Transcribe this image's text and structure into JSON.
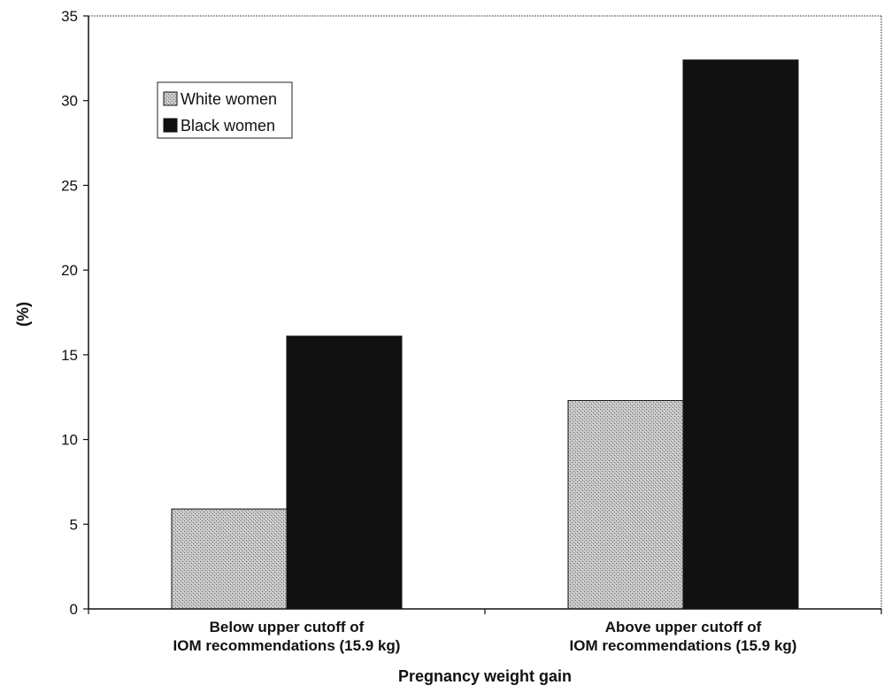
{
  "chart_data": {
    "type": "bar",
    "title": "",
    "xlabel": "Pregnancy weight gain",
    "ylabel": "(%)",
    "ylim": [
      0,
      35
    ],
    "yticks": [
      0,
      5,
      10,
      15,
      20,
      25,
      30,
      35
    ],
    "grid": false,
    "legend_position": "top-left",
    "categories": [
      [
        "Below upper cutoff of",
        "IOM recommendations (15.9 kg)"
      ],
      [
        "Above upper cutoff of",
        "IOM recommendations (15.9 kg)"
      ]
    ],
    "series": [
      {
        "name": "White women",
        "values": [
          5.9,
          12.3
        ],
        "color": "#b8b8b8",
        "pattern": "stipple"
      },
      {
        "name": "Black women",
        "values": [
          16.1,
          32.4
        ],
        "color": "#111111",
        "pattern": "solid"
      }
    ]
  }
}
